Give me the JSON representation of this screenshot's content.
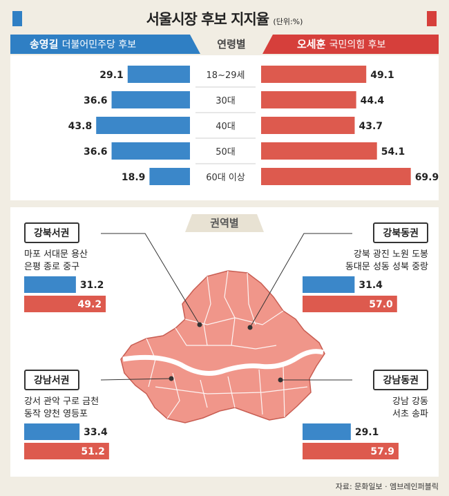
{
  "title": {
    "main": "서울시장 후보 지지율",
    "unit": "(단위:%)"
  },
  "header": {
    "left_name": "송영길",
    "left_party": "더불어민주당 후보",
    "mid": "연령별",
    "right_name": "오세훈",
    "right_party": "국민의힘 후보"
  },
  "section_region_title": "권역별",
  "source": "자료: 문화일보 · 엠브레인퍼블릭",
  "colors": {
    "song": "#3b87c9",
    "oh": "#dd5a4e",
    "map": "#f0968a"
  },
  "chart_data": [
    {
      "type": "bar",
      "title": "연령별",
      "categories": [
        "18~29세",
        "30대",
        "40대",
        "50대",
        "60대 이상"
      ],
      "series": [
        {
          "name": "송영길 더불어민주당 후보",
          "values": [
            29.1,
            36.6,
            43.8,
            36.6,
            18.9
          ]
        },
        {
          "name": "오세훈 국민의힘 후보",
          "values": [
            49.1,
            44.4,
            43.7,
            54.1,
            69.9
          ]
        }
      ]
    },
    {
      "type": "bar",
      "title": "권역별",
      "categories": [
        "강북서권",
        "강북동권",
        "강남서권",
        "강남동권"
      ],
      "series": [
        {
          "name": "송영길 더불어민주당 후보",
          "values": [
            31.2,
            31.4,
            33.4,
            29.1
          ]
        },
        {
          "name": "오세훈 국민의힘 후보",
          "values": [
            49.2,
            57.0,
            51.2,
            57.9
          ]
        }
      ]
    }
  ],
  "region_labels": [
    {
      "name": "강북서권",
      "line1": "마포  서대문  용산",
      "line2": "은평  종로  중구",
      "song": "31.2",
      "oh": "49.2"
    },
    {
      "name": "강북동권",
      "line1": "강북  광진  노원  도봉",
      "line2": "동대문  성동  성북  중랑",
      "song": "31.4",
      "oh": "57.0"
    },
    {
      "name": "강남서권",
      "line1": "강서  관악  구로  금천",
      "line2": "동작  양천  영등포",
      "song": "33.4",
      "oh": "51.2"
    },
    {
      "name": "강남동권",
      "line1": "강남  강동",
      "line2": "서초  송파",
      "song": "29.1",
      "oh": "57.9"
    }
  ]
}
